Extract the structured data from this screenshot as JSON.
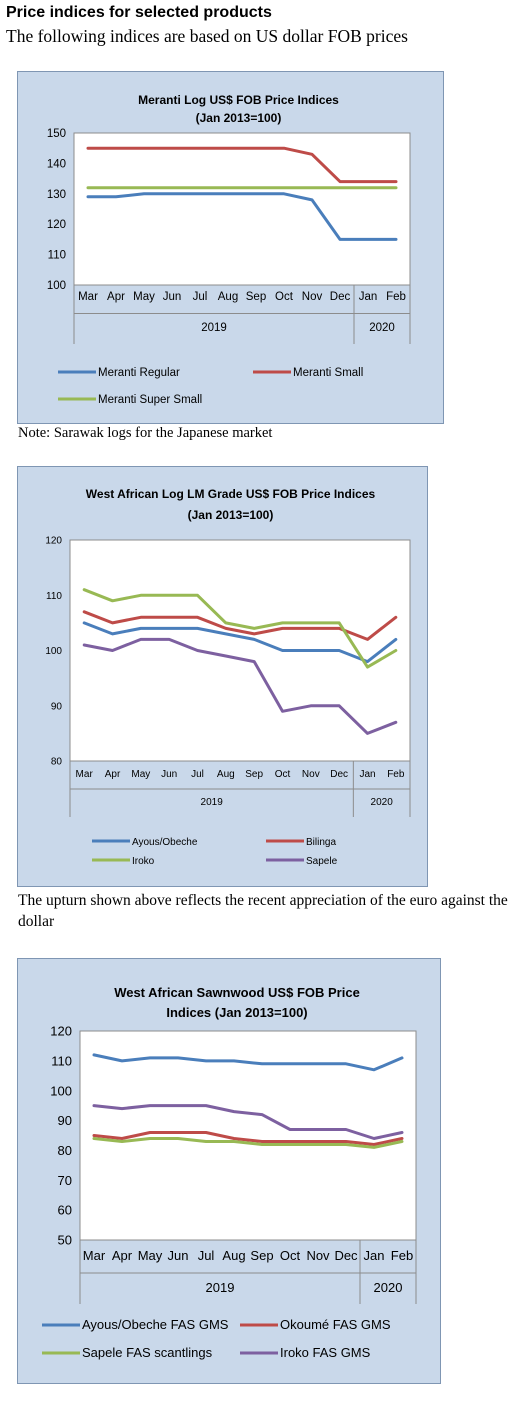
{
  "page": {
    "heading": "Price indices for selected products",
    "subheading": "The following indices are based on US dollar FOB prices",
    "note1": "Note: Sarawak logs for the Japanese market",
    "para2": "The upturn shown above reflects the recent appreciation of the euro against the dollar"
  },
  "chart_data": [
    {
      "type": "line",
      "title": "Meranti Log US$ FOB Price Indices",
      "subtitle": "(Jan 2013=100)",
      "categories": [
        "Mar",
        "Apr",
        "May",
        "Jun",
        "Jul",
        "Aug",
        "Sep",
        "Oct",
        "Nov",
        "Dec",
        "Jan",
        "Feb"
      ],
      "groups": [
        "2019",
        "2020"
      ],
      "ylim": [
        100,
        150
      ],
      "yticks": [
        100,
        110,
        120,
        130,
        140,
        150
      ],
      "grid": false,
      "legend": "bottom",
      "series": [
        {
          "name": "Meranti Regular",
          "color": "#4a7ebb",
          "values": [
            129,
            129,
            130,
            130,
            130,
            130,
            130,
            130,
            128,
            115,
            115,
            115
          ]
        },
        {
          "name": "Meranti Small",
          "color": "#be4b48",
          "values": [
            145,
            145,
            145,
            145,
            145,
            145,
            145,
            145,
            143,
            134,
            134,
            134
          ]
        },
        {
          "name": "Meranti Super Small",
          "color": "#98b954",
          "values": [
            132,
            132,
            132,
            132,
            132,
            132,
            132,
            132,
            132,
            132,
            132,
            132
          ]
        }
      ]
    },
    {
      "type": "line",
      "title": "West African Log LM Grade US$ FOB Price Indices",
      "subtitle": "(Jan 2013=100)",
      "categories": [
        "Mar",
        "Apr",
        "May",
        "Jun",
        "Jul",
        "Aug",
        "Sep",
        "Oct",
        "Nov",
        "Dec",
        "Jan",
        "Feb"
      ],
      "groups": [
        "2019",
        "2020"
      ],
      "ylim": [
        80,
        120
      ],
      "yticks": [
        80,
        90,
        100,
        110,
        120
      ],
      "grid": false,
      "legend": "bottom",
      "series": [
        {
          "name": "Ayous/Obeche",
          "color": "#4a7ebb",
          "values": [
            105,
            103,
            104,
            104,
            104,
            103,
            102,
            100,
            100,
            100,
            98,
            102
          ]
        },
        {
          "name": "Bilinga",
          "color": "#be4b48",
          "values": [
            107,
            105,
            106,
            106,
            106,
            104,
            103,
            104,
            104,
            104,
            102,
            106
          ]
        },
        {
          "name": "Iroko",
          "color": "#98b954",
          "values": [
            111,
            109,
            110,
            110,
            110,
            105,
            104,
            105,
            105,
            105,
            97,
            100
          ]
        },
        {
          "name": "Sapele",
          "color": "#7d60a0",
          "values": [
            101,
            100,
            102,
            102,
            100,
            99,
            98,
            89,
            90,
            90,
            85,
            87
          ]
        }
      ]
    },
    {
      "type": "line",
      "title": "West African Sawnwood US$ FOB Price",
      "subtitle": "Indices (Jan 2013=100)",
      "categories": [
        "Mar",
        "Apr",
        "May",
        "Jun",
        "Jul",
        "Aug",
        "Sep",
        "Oct",
        "Nov",
        "Dec",
        "Jan",
        "Feb"
      ],
      "groups": [
        "2019",
        "2020"
      ],
      "ylim": [
        50,
        120
      ],
      "yticks": [
        50,
        60,
        70,
        80,
        90,
        100,
        110,
        120
      ],
      "grid": false,
      "legend": "bottom",
      "series": [
        {
          "name": "Ayous/Obeche FAS GMS",
          "color": "#4a7ebb",
          "values": [
            112,
            110,
            111,
            111,
            110,
            110,
            109,
            109,
            109,
            109,
            107,
            111
          ]
        },
        {
          "name": "Okoumé FAS GMS",
          "color": "#be4b48",
          "values": [
            85,
            84,
            86,
            86,
            86,
            84,
            83,
            83,
            83,
            83,
            82,
            84
          ]
        },
        {
          "name": "Sapele FAS scantlings",
          "color": "#98b954",
          "values": [
            84,
            83,
            84,
            84,
            83,
            83,
            82,
            82,
            82,
            82,
            81,
            83
          ]
        },
        {
          "name": "Iroko FAS GMS",
          "color": "#7d60a0",
          "values": [
            95,
            94,
            95,
            95,
            95,
            93,
            92,
            87,
            87,
            87,
            84,
            86
          ]
        }
      ]
    }
  ]
}
